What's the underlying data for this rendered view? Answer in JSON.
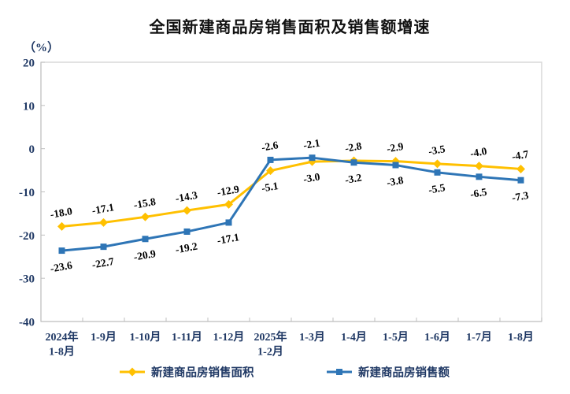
{
  "page": {
    "title": "全国新建商品房销售面积及销售额增速",
    "unit_label": "（%）"
  },
  "colors": {
    "series_area": "#FFC000",
    "series_amount": "#2E75B6",
    "axis_label": "#1F3864",
    "data_label": "#000000",
    "plot_border": "#D9D9D9",
    "axis_line": "#BFBFBF",
    "title": "#111111",
    "background": "#FFFFFF"
  },
  "chart_data": {
    "type": "line",
    "title": "全国新建商品房销售面积及销售额增速",
    "ylabel": "（%）",
    "xlabel": "",
    "ylim": [
      -40,
      20
    ],
    "y_ticks": [
      20,
      10,
      0,
      -10,
      -20,
      -30,
      -40
    ],
    "grid": false,
    "legend_position": "bottom",
    "categories": [
      [
        "2024年",
        "1-8月"
      ],
      [
        "1-9月"
      ],
      [
        "1-10月"
      ],
      [
        "1-11月"
      ],
      [
        "1-12月"
      ],
      [
        "2025年",
        "1-2月"
      ],
      [
        "1-3月"
      ],
      [
        "1-4月"
      ],
      [
        "1-5月"
      ],
      [
        "1-6月"
      ],
      [
        "1-7月"
      ],
      [
        "1-8月"
      ]
    ],
    "series": [
      {
        "name": "新建商品房销售面积",
        "color": "#FFC000",
        "marker": "diamond",
        "values": [
          -18.0,
          -17.1,
          -15.8,
          -14.3,
          -12.9,
          -5.1,
          -3.0,
          -2.8,
          -2.9,
          -3.5,
          -4.0,
          -4.7
        ],
        "label_side": [
          "above",
          "above",
          "above",
          "above",
          "above",
          "below",
          "below",
          "above",
          "above",
          "above",
          "above",
          "above"
        ]
      },
      {
        "name": "新建商品房销售额",
        "color": "#2E75B6",
        "marker": "square",
        "values": [
          -23.6,
          -22.7,
          -20.9,
          -19.2,
          -17.1,
          -2.6,
          -2.1,
          -3.2,
          -3.8,
          -5.5,
          -6.5,
          -7.3
        ],
        "label_side": [
          "below",
          "below",
          "below",
          "below",
          "below",
          "above",
          "above",
          "below",
          "below",
          "below",
          "below",
          "below"
        ]
      }
    ]
  }
}
